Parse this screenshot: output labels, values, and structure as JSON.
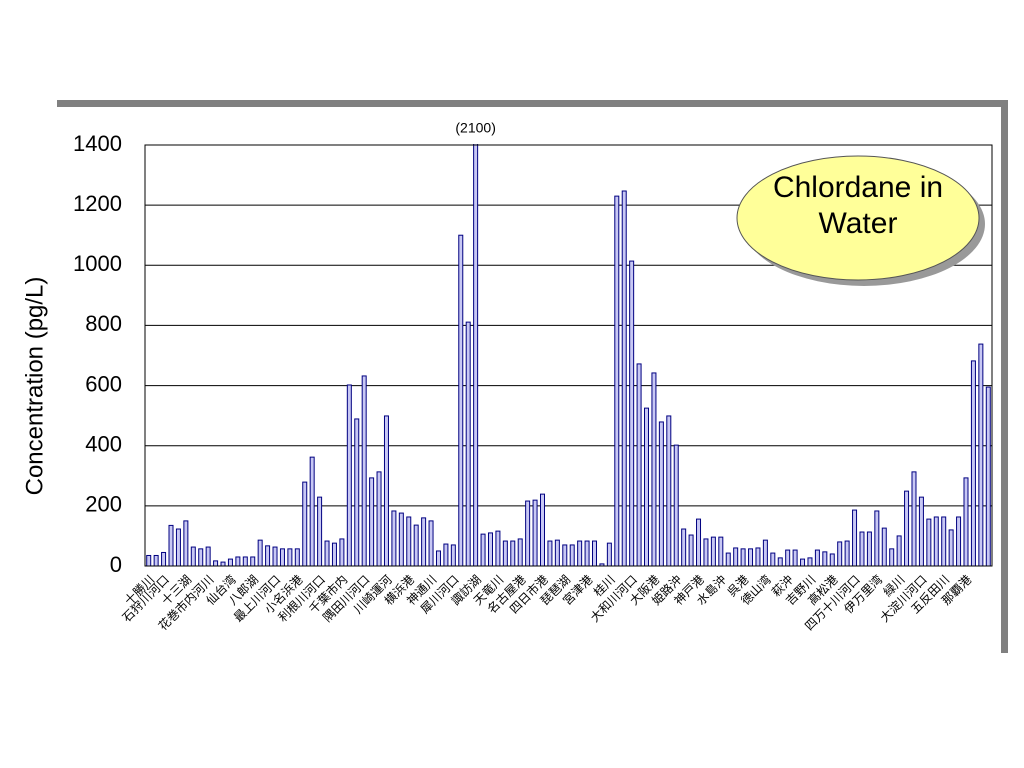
{
  "chart_data": {
    "type": "bar",
    "title": "Chlordane in Water",
    "y_label": "Concentration (pg/L)",
    "categories": [
      "十勝川",
      null,
      "石狩川河口",
      null,
      null,
      "十三湖",
      null,
      null,
      "花巻市内河川",
      null,
      null,
      "仙台湾",
      null,
      null,
      "八郎湖",
      null,
      null,
      "最上川河口",
      null,
      null,
      "小名浜港",
      null,
      null,
      "利根川河口",
      null,
      null,
      "千葉市内",
      null,
      null,
      "隅田川河口",
      null,
      null,
      "川崎運河",
      null,
      null,
      "横浜港",
      null,
      null,
      "神通川",
      null,
      null,
      "犀川河口",
      null,
      null,
      "諏訪湖",
      null,
      null,
      "天竜川",
      null,
      null,
      "名古屋港",
      null,
      null,
      "四日市港",
      null,
      null,
      "琵琶湖",
      null,
      null,
      "宮津港",
      null,
      null,
      "桂川",
      null,
      null,
      "大和川河口",
      null,
      null,
      "大阪港",
      null,
      null,
      "姫路沖",
      null,
      null,
      "神戸港",
      null,
      null,
      "水島沖",
      null,
      null,
      "呉港",
      null,
      null,
      "徳山湾",
      null,
      null,
      "萩沖",
      null,
      null,
      "吉野川",
      null,
      null,
      "高松港",
      null,
      null,
      "四万十川河口",
      null,
      null,
      "伊万里湾",
      null,
      null,
      "緑川",
      null,
      null,
      "大淀川河口",
      null,
      null,
      "五反田川",
      null,
      null,
      "那覇港",
      null,
      null,
      null
    ],
    "values": [
      35,
      35,
      45,
      135,
      123,
      150,
      63,
      57,
      63,
      17,
      13,
      23,
      30,
      30,
      30,
      86,
      67,
      63,
      57,
      57,
      57,
      279,
      362,
      229,
      83,
      76,
      90,
      602,
      489,
      632,
      293,
      313,
      499,
      183,
      176,
      163,
      136,
      160,
      150,
      50,
      73,
      70,
      1100,
      811,
      2100,
      106,
      110,
      116,
      83,
      83,
      90,
      216,
      219,
      239,
      83,
      86,
      70,
      70,
      83,
      83,
      83,
      7,
      76,
      1230,
      1247,
      1014,
      672,
      525,
      642,
      479,
      499,
      402,
      123,
      103,
      156,
      90,
      96,
      96,
      43,
      60,
      57,
      57,
      60,
      86,
      43,
      27,
      53,
      53,
      23,
      27,
      53,
      47,
      40,
      80,
      83,
      186,
      113,
      113,
      183,
      126,
      57,
      100,
      249,
      313,
      229,
      156,
      163,
      163,
      120,
      163,
      293,
      682,
      738,
      595
    ],
    "value_labels": [
      null,
      null,
      null,
      null,
      null,
      null,
      null,
      null,
      null,
      null,
      null,
      null,
      null,
      null,
      null,
      null,
      null,
      null,
      null,
      null,
      null,
      null,
      null,
      null,
      null,
      null,
      null,
      null,
      null,
      null,
      null,
      null,
      null,
      null,
      null,
      null,
      null,
      null,
      null,
      null,
      null,
      null,
      null,
      null,
      "(2100)",
      null,
      null,
      null,
      null,
      null,
      null,
      null,
      null,
      null,
      null,
      null,
      null,
      null,
      null,
      null,
      null,
      null,
      null,
      null,
      null,
      null,
      null,
      null,
      null,
      null,
      null,
      null,
      null,
      null,
      null,
      null,
      null,
      null,
      null,
      null,
      null,
      null,
      null,
      null,
      null,
      null,
      null,
      null,
      null,
      null,
      null,
      null,
      null,
      null,
      null,
      null,
      null,
      null,
      null,
      null,
      null,
      null,
      null,
      null,
      null,
      null,
      null,
      null,
      null,
      null,
      null,
      null,
      null,
      null
    ],
    "color": "#c8c8f4",
    "edge_color": "#000080",
    "ylim": [
      0,
      1400
    ],
    "yticks": [
      0,
      200,
      400,
      600,
      800,
      1000,
      1200,
      1400
    ],
    "grid": true
  }
}
